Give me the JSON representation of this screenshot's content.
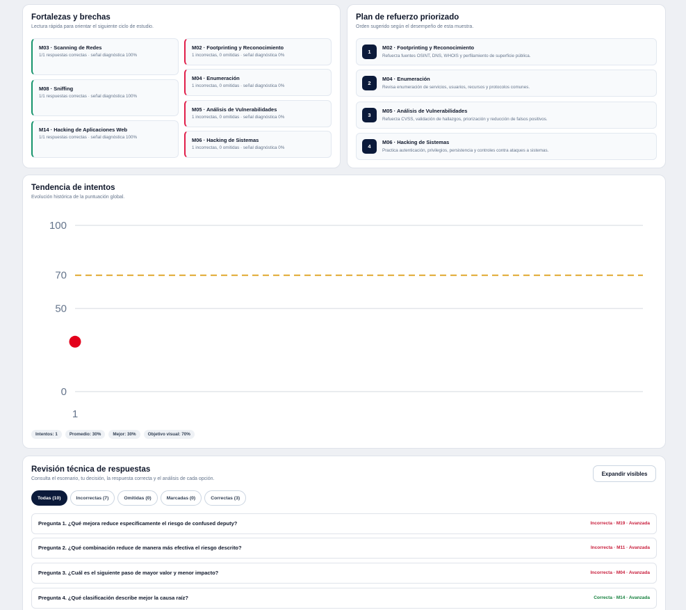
{
  "fortalezas": {
    "title": "Fortalezas y brechas",
    "subtitle": "Lectura rápida para orientar el siguiente ciclo de estudio.",
    "strengths": [
      {
        "title": "M03 · Scanning de Redes",
        "detail": "1/1 respuestas correctas · señal diagnóstica 100%"
      },
      {
        "title": "M08 · Sniffing",
        "detail": "1/1 respuestas correctas · señal diagnóstica 100%"
      },
      {
        "title": "M14 · Hacking de Aplicaciones Web",
        "detail": "1/1 respuestas correctas · señal diagnóstica 100%"
      }
    ],
    "gaps": [
      {
        "title": "M02 · Footprinting y Reconocimiento",
        "detail": "1 incorrectas, 0 omitidas · señal diagnóstica 0%"
      },
      {
        "title": "M04 · Enumeración",
        "detail": "1 incorrectas, 0 omitidas · señal diagnóstica 0%"
      },
      {
        "title": "M05 · Análisis de Vulnerabilidades",
        "detail": "1 incorrectas, 0 omitidas · señal diagnóstica 0%"
      },
      {
        "title": "M06 · Hacking de Sistemas",
        "detail": "1 incorrectas, 0 omitidas · señal diagnóstica 0%"
      }
    ]
  },
  "plan": {
    "title": "Plan de refuerzo priorizado",
    "subtitle": "Orden sugerido según el desempeño de esta muestra.",
    "items": [
      {
        "num": "1",
        "title": "M02 · Footprinting y Reconocimiento",
        "detail": "Refuerza fuentes OSINT, DNS, WHOIS y perfilamiento de superficie pública."
      },
      {
        "num": "2",
        "title": "M04 · Enumeración",
        "detail": "Revisa enumeración de servicios, usuarios, recursos y protocolos comunes."
      },
      {
        "num": "3",
        "title": "M05 · Análisis de Vulnerabilidades",
        "detail": "Refuerza CVSS, validación de hallazgos, priorización y reducción de falsos positivos."
      },
      {
        "num": "4",
        "title": "M06 · Hacking de Sistemas",
        "detail": "Practica autenticación, privilegios, persistencia y controles contra ataques a sistemas."
      }
    ]
  },
  "trend": {
    "title": "Tendencia de intentos",
    "subtitle": "Evolución histórica de la puntuación global.",
    "pills": [
      "Intentos: 1",
      "Promedio: 30%",
      "Mejor: 30%",
      "Objetivo visual: 70%"
    ]
  },
  "chart_data": {
    "type": "line",
    "x": [
      1
    ],
    "series": [
      {
        "values": [
          30
        ]
      }
    ],
    "x_ticks": [
      "1"
    ],
    "y_ticks": [
      0,
      50,
      70,
      100
    ],
    "ylim": [
      0,
      100
    ],
    "target_line": 70,
    "point_color": "#e3001b",
    "target_color": "#e0a82e",
    "grid": true
  },
  "review": {
    "title": "Revisión técnica de respuestas",
    "subtitle": "Consulta el escenario, tu decisión, la respuesta correcta y el análisis de cada opción.",
    "expand_label": "Expandir visibles",
    "tabs": [
      "Todas (10)",
      "Incorrectas (7)",
      "Omitidas (0)",
      "Marcadas (0)",
      "Correctas (3)"
    ],
    "questions": [
      {
        "text": "Pregunta 1. ¿Qué mejora reduce específicamente el riesgo de confused deputy?",
        "status": "Incorrecta · M19 · Avanzada",
        "ok": false
      },
      {
        "text": "Pregunta 2. ¿Qué combinación reduce de manera más efectiva el riesgo descrito?",
        "status": "Incorrecta · M11 · Avanzada",
        "ok": false
      },
      {
        "text": "Pregunta 3. ¿Cuál es el siguiente paso de mayor valor y menor impacto?",
        "status": "Incorrecta · M04 · Avanzada",
        "ok": false
      },
      {
        "text": "Pregunta 4. ¿Qué clasificación describe mejor la causa raíz?",
        "status": "Correcta · M14 · Avanzada",
        "ok": true
      }
    ]
  }
}
